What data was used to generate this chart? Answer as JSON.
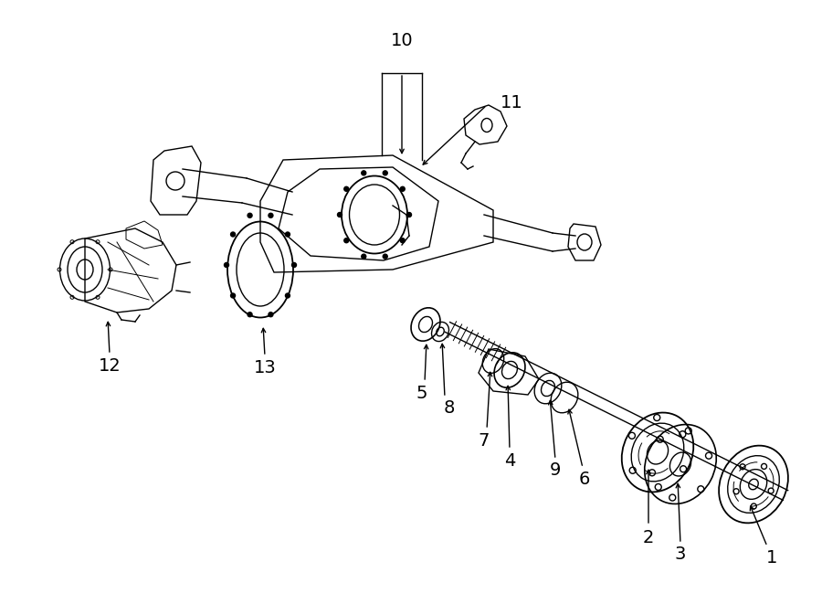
{
  "bg_color": "#ffffff",
  "line_color": "#000000",
  "fig_width": 9.0,
  "fig_height": 6.61,
  "dpi": 100,
  "lw": 1.0
}
